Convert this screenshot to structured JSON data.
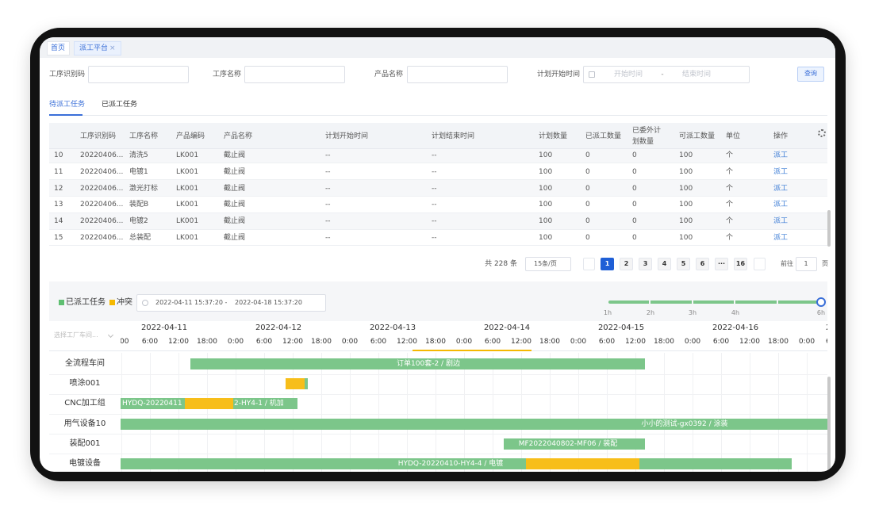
{
  "tabs": [
    {
      "label": "首页"
    },
    {
      "label": "派工平台",
      "close": "×"
    }
  ],
  "filters": {
    "code": "工序识别码",
    "process": "工序名称",
    "product": "产品名称",
    "start": "计划开始时间",
    "from": "开始时间",
    "sep": "-",
    "to": "结束时间",
    "search": "查询"
  },
  "subtabs": [
    "待派工任务",
    "已派工任务"
  ],
  "table": {
    "headers": [
      "工序识别码",
      "工序名称",
      "产品编码",
      "产品名称",
      "计划开始时间",
      "计划结束时间",
      "计划数量",
      "已派工数量",
      "已委外计划数量",
      "可派工数量",
      "单位",
      "操作"
    ],
    "rows": [
      [
        "10",
        "20220406...",
        "清洗5",
        "LK001",
        "截止阀",
        "--",
        "--",
        "100",
        "0",
        "0",
        "100",
        "个",
        "派工"
      ],
      [
        "11",
        "20220406...",
        "电镀1",
        "LK001",
        "截止阀",
        "--",
        "--",
        "100",
        "0",
        "0",
        "100",
        "个",
        "派工"
      ],
      [
        "12",
        "20220406...",
        "激光打标",
        "LK001",
        "截止阀",
        "--",
        "--",
        "100",
        "0",
        "0",
        "100",
        "个",
        "派工"
      ],
      [
        "13",
        "20220406...",
        "装配B",
        "LK001",
        "截止阀",
        "--",
        "--",
        "100",
        "0",
        "0",
        "100",
        "个",
        "派工"
      ],
      [
        "14",
        "20220406...",
        "电镀2",
        "LK001",
        "截止阀",
        "--",
        "--",
        "100",
        "0",
        "0",
        "100",
        "个",
        "派工"
      ],
      [
        "15",
        "20220406...",
        "总装配",
        "LK001",
        "截止阀",
        "--",
        "--",
        "100",
        "0",
        "0",
        "100",
        "个",
        "派工"
      ]
    ]
  },
  "pagination": {
    "total": "共 228 条",
    "size": "15条/页",
    "pages": [
      "1",
      "2",
      "3",
      "4",
      "5",
      "6",
      "···",
      "16"
    ],
    "goto": "前往",
    "input": "1",
    "unit": "页"
  },
  "gantt": {
    "legend": [
      "已派工任务",
      "冲突"
    ],
    "range_start": "2022-04-11 15:37:20",
    "range_sep": "-",
    "range_end": "2022-04-18 15:37:20",
    "zoom": [
      "1h",
      "2h",
      "3h",
      "4h",
      "6h"
    ],
    "select": "选择工厂车间...",
    "days": [
      "2022-04-11",
      "2022-04-12",
      "2022-04-13",
      "2022-04-14",
      "2022-04-15",
      "2022-04-16",
      "2"
    ],
    "hours": [
      "00",
      "6:00",
      "12:00",
      "18:00",
      "0:00",
      "6:00",
      "12:00",
      "18:00",
      "0:00",
      "6:00",
      "12:00",
      "18:00",
      "0:00",
      "6:00",
      "12:00",
      "18:00",
      "0:00",
      "6:00",
      "12:00",
      "18:00",
      "0:00",
      "6:00",
      "12:00",
      "18:00",
      "0:00",
      "6"
    ],
    "resources": [
      {
        "name": "全流程车间",
        "bars": [
          "订单100套-2 / 剧边"
        ]
      },
      {
        "name": "喷涂001",
        "bars": []
      },
      {
        "name": "CNC加工组",
        "bars": [
          "HYDQ-20220411",
          "2-HY4-1 / 机加"
        ]
      },
      {
        "name": "用气设备10",
        "bars": [
          "小小的测试-gx0392 / 涂装"
        ]
      },
      {
        "name": "装配001",
        "bars": [
          "MF2022040802-MF06 / 装配"
        ]
      },
      {
        "name": "电镀设备",
        "bars": [
          "HYDQ-20220410-HY4-4 / 电镀"
        ]
      }
    ]
  }
}
